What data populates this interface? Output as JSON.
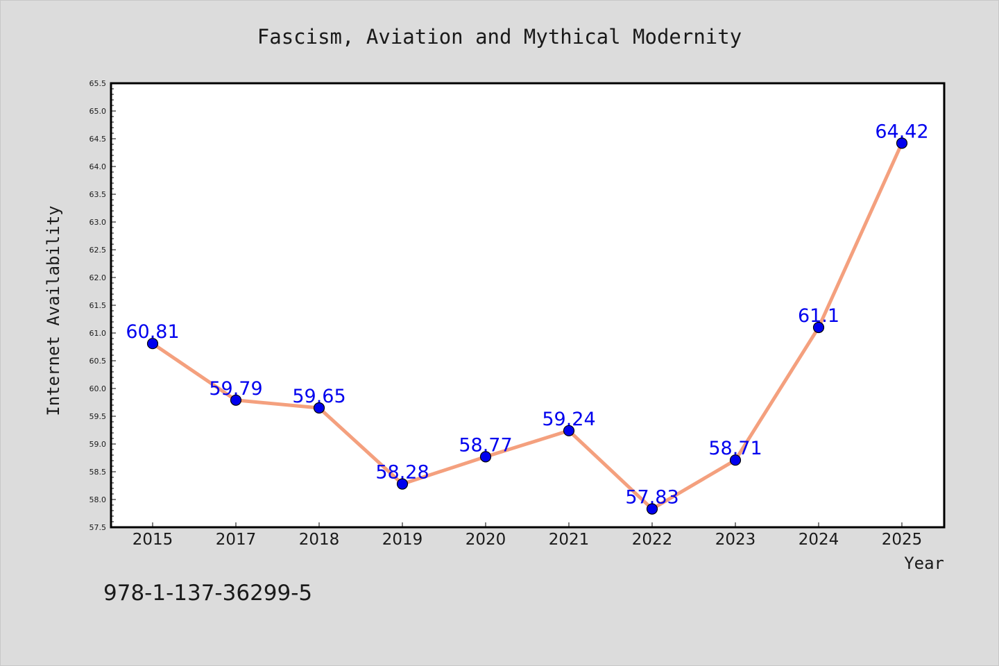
{
  "chart_data": {
    "type": "line",
    "title": "Fascism, Aviation and Mythical Modernity",
    "xlabel": "Year",
    "ylabel": "Internet Availability",
    "categories": [
      "2015",
      "2017",
      "2018",
      "2019",
      "2020",
      "2021",
      "2022",
      "2023",
      "2024",
      "2025"
    ],
    "series": [
      {
        "values": [
          60.81,
          59.79,
          59.65,
          58.28,
          58.77,
          59.24,
          57.83,
          58.71,
          61.1,
          64.42
        ],
        "data_labels": [
          "60.81",
          "59.79",
          "59.65",
          "58.28",
          "58.77",
          "59.24",
          "57.83",
          "58.71",
          "61.1",
          "64.42"
        ]
      }
    ],
    "ylim": [
      57.5,
      65.5
    ],
    "yticks": [
      "57.5",
      "58.0",
      "58.5",
      "59.0",
      "59.5",
      "60.0",
      "60.5",
      "61.0",
      "61.5",
      "62.0",
      "62.5",
      "63.0",
      "63.5",
      "64.0",
      "64.5",
      "65.0",
      "65.5"
    ],
    "grid": false,
    "legend": "none",
    "colors": {
      "background": "#dcdcdc",
      "plot_background": "#ffffff",
      "line": "#f4a07e",
      "marker": "#0000ee",
      "data_label": "#0000ee",
      "text": "#1a1a1a"
    }
  },
  "footer_text": "978-1-137-36299-5"
}
